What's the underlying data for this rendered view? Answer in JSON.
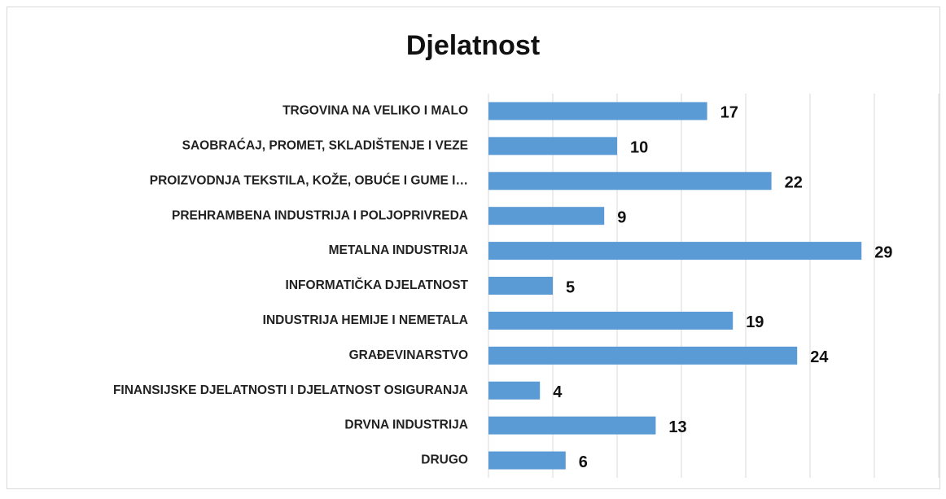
{
  "chart_data": {
    "type": "barh",
    "title": "Djelatnost",
    "categories": [
      "TRGOVINA NA VELIKO I MALO",
      "SAOBRAĆAJ, PROMET, SKLADIŠTENJE I VEZE",
      "PROIZVODNJA TEKSTILA, KOŽE, OBUĆE I GUME I…",
      "PREHRAMBENA INDUSTRIJA I POLJOPRIVREDA",
      "METALNA INDUSTRIJA",
      "INFORMATIČKA DJELATNOST",
      "INDUSTRIJA HEMIJE I NEMETALA",
      "GRAĐEVINARSTVO",
      "FINANSIJSKE DJELATNOSTI I DJELATNOST OSIGURANJA",
      "DRVNA INDUSTRIJA",
      "DRUGO"
    ],
    "values": [
      17,
      10,
      22,
      9,
      29,
      5,
      19,
      24,
      4,
      13,
      6
    ],
    "color": "#5b9bd5",
    "xlim": [
      0,
      35
    ],
    "xticks": [
      0,
      5,
      10,
      15,
      20,
      25,
      30,
      35
    ],
    "grid": true
  }
}
